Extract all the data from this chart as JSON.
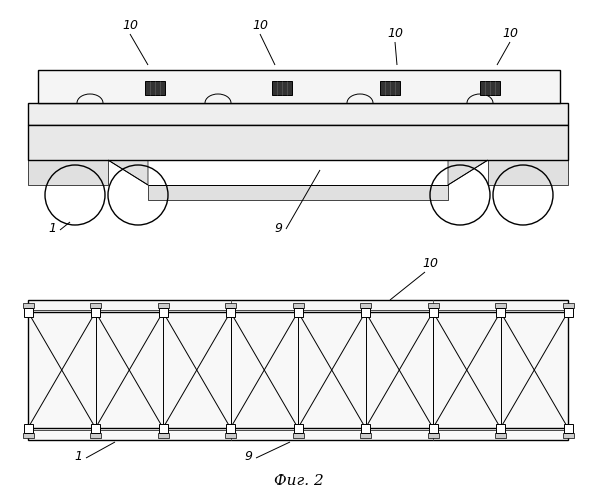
{
  "bg_color": "#ffffff",
  "line_color": "#000000",
  "fig_label": "Фиг. 2",
  "fig_width": 5.98,
  "fig_height": 5.0,
  "dpi": 100
}
